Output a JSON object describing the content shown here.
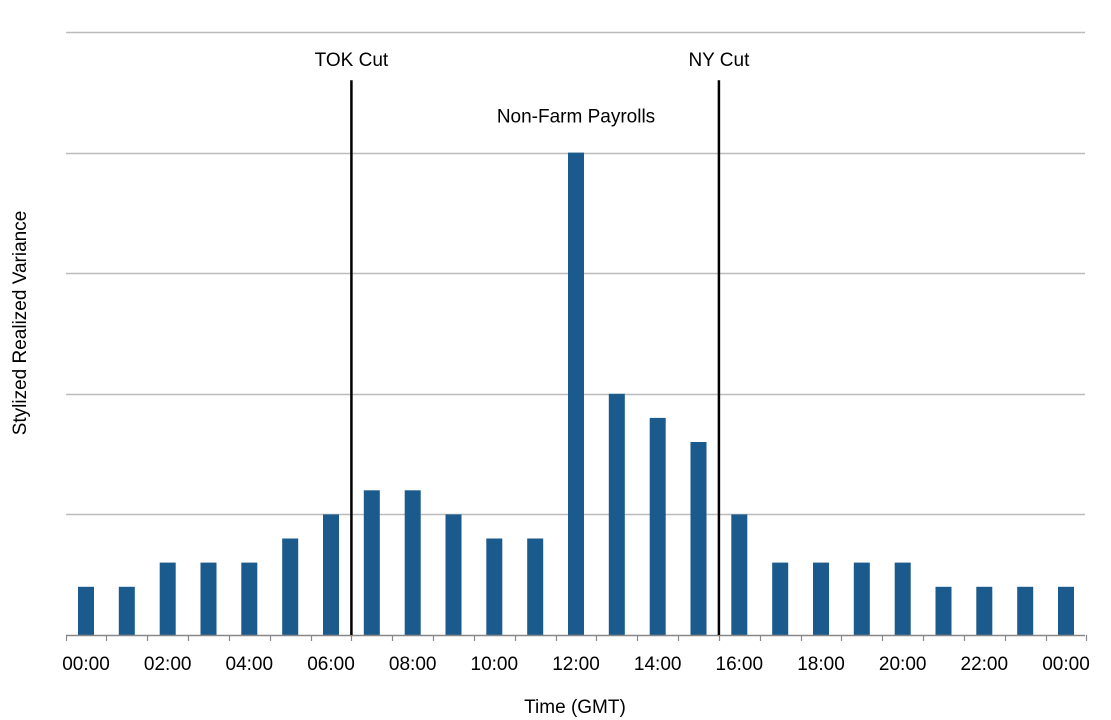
{
  "chart_data": {
    "type": "bar",
    "title": "",
    "xlabel": "Time (GMT)",
    "ylabel": "Stylized Realized Variance",
    "ylim": [
      0,
      25
    ],
    "grid": true,
    "gridlines": [
      5,
      10,
      15,
      20,
      25
    ],
    "show_y_tick_labels": false,
    "x_range": [
      0,
      24
    ],
    "x_tick_values": [
      0,
      2,
      4,
      6,
      8,
      10,
      12,
      14,
      16,
      18,
      20,
      22,
      24
    ],
    "x_tick_labels": [
      "00:00",
      "02:00",
      "04:00",
      "06:00",
      "08:00",
      "10:00",
      "12:00",
      "14:00",
      "16:00",
      "18:00",
      "20:00",
      "22:00",
      "00:00"
    ],
    "bar_color": "#1a5a8c",
    "line_color": "#000000",
    "gridline_color": "#bbbbbb",
    "bars": [
      {
        "hour": 0,
        "value": 2
      },
      {
        "hour": 1,
        "value": 2
      },
      {
        "hour": 2,
        "value": 3
      },
      {
        "hour": 3,
        "value": 3
      },
      {
        "hour": 4,
        "value": 3
      },
      {
        "hour": 5,
        "value": 4
      },
      {
        "hour": 6,
        "value": 5
      },
      {
        "hour": 7,
        "value": 6
      },
      {
        "hour": 8,
        "value": 6
      },
      {
        "hour": 9,
        "value": 5
      },
      {
        "hour": 10,
        "value": 4
      },
      {
        "hour": 11,
        "value": 4
      },
      {
        "hour": 12,
        "value": 20
      },
      {
        "hour": 13,
        "value": 10
      },
      {
        "hour": 14,
        "value": 9
      },
      {
        "hour": 15,
        "value": 8
      },
      {
        "hour": 16,
        "value": 5
      },
      {
        "hour": 17,
        "value": 3
      },
      {
        "hour": 18,
        "value": 3
      },
      {
        "hour": 19,
        "value": 3
      },
      {
        "hour": 20,
        "value": 3
      },
      {
        "hour": 21,
        "value": 2
      },
      {
        "hour": 22,
        "value": 2
      },
      {
        "hour": 23,
        "value": 2
      },
      {
        "hour": 24,
        "value": 2
      }
    ],
    "annotations": [
      {
        "label": "TOK Cut",
        "type": "vline",
        "x": 6.5,
        "y_top": 23
      },
      {
        "label": "NY Cut",
        "type": "vline",
        "x": 15.5,
        "y_top": 23
      },
      {
        "label": "Non-Farm Payrolls",
        "type": "text",
        "x": 12.0,
        "y": 21.5
      }
    ]
  }
}
